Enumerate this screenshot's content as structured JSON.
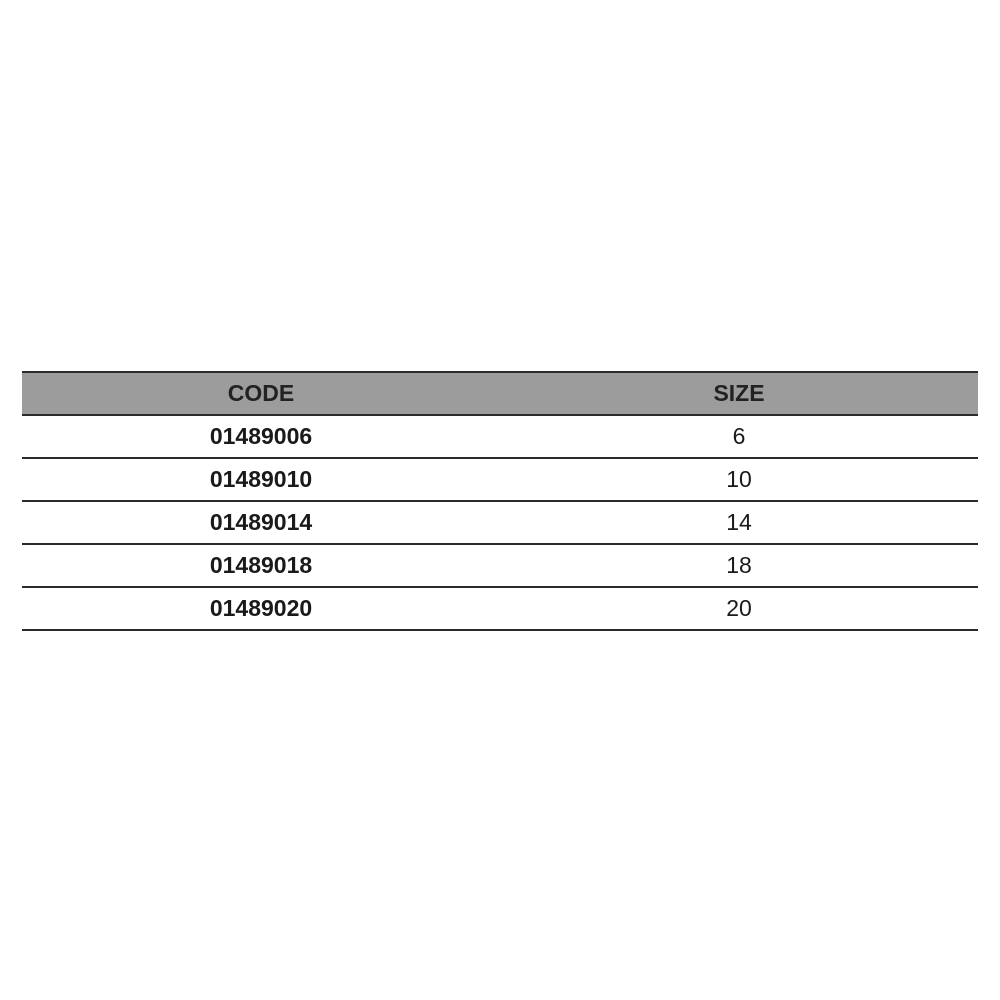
{
  "table": {
    "headers": [
      "CODE",
      "SIZE"
    ],
    "rows": [
      {
        "code": "01489006",
        "size": "6"
      },
      {
        "code": "01489010",
        "size": "10"
      },
      {
        "code": "01489014",
        "size": "14"
      },
      {
        "code": "01489018",
        "size": "18"
      },
      {
        "code": "01489020",
        "size": "20"
      }
    ]
  }
}
